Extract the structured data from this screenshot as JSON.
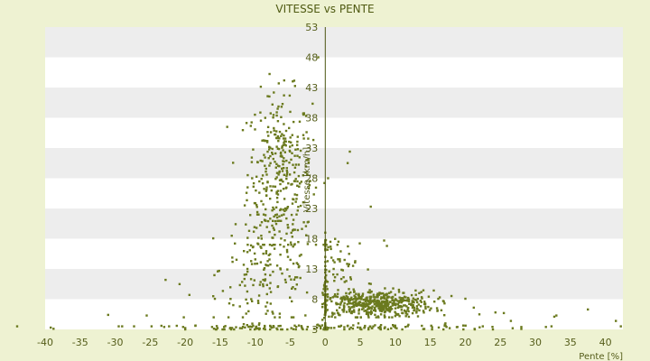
{
  "chart_data": {
    "type": "scatter",
    "title": "VITESSE vs PENTE",
    "xlabel": "Pente [%]",
    "ylabel": "Vitesse [km/h]",
    "xlim": [
      -40,
      42.5
    ],
    "ylim": [
      3,
      53
    ],
    "x_ticks": [
      "-40",
      "-35",
      "-30",
      "-25",
      "-20",
      "-15",
      "-10",
      "-5",
      "0",
      "5",
      "10",
      "15",
      "20",
      "25",
      "30",
      "35",
      "40"
    ],
    "y_ticks": [
      "3",
      "8",
      "13",
      "18",
      "23",
      "28",
      "33",
      "38",
      "43",
      "48",
      "53"
    ],
    "colors": {
      "background": "#eef2d2",
      "plot_band_light": "#ffffff",
      "plot_band_dark": "#ededed",
      "marker": "#6b7a1e",
      "text": "#555d1a"
    },
    "grid": true,
    "legend": "none",
    "clusters": [
      {
        "x_mean": -6.5,
        "x_sd": 2.3,
        "y_mean": 29,
        "y_sd": 6.5,
        "count": 330,
        "x_range": [
          -14,
          0
        ],
        "y_range": [
          17,
          47
        ]
      },
      {
        "x_mean": -8,
        "x_sd": 3.5,
        "y_mean": 13,
        "y_sd": 5,
        "count": 170,
        "x_range": [
          -16,
          0
        ],
        "y_range": [
          5,
          22
        ]
      },
      {
        "x_mean": 7,
        "x_sd": 4.2,
        "y_mean": 7.2,
        "y_sd": 1.1,
        "count": 520,
        "x_range": [
          0,
          20
        ],
        "y_range": [
          5,
          10.5
        ]
      },
      {
        "x_mean": 2,
        "x_sd": 2.5,
        "y_mean": 13,
        "y_sd": 3,
        "count": 70,
        "x_range": [
          0,
          10
        ],
        "y_range": [
          8,
          19
        ]
      },
      {
        "x_mean": -8,
        "x_sd": 6,
        "y_mean": 3.3,
        "y_sd": 0.3,
        "count": 90,
        "x_range": [
          -20,
          0
        ],
        "y_range": [
          3,
          4
        ]
      },
      {
        "x_mean": 8,
        "x_sd": 8,
        "y_mean": 3.3,
        "y_sd": 0.3,
        "count": 90,
        "x_range": [
          0,
          28
        ],
        "y_range": [
          3,
          4
        ]
      },
      {
        "x_mean": 0,
        "x_sd": 0.2,
        "y_mean": 7,
        "y_sd": 4,
        "count": 40,
        "x_range": [
          -0.4,
          0.4
        ],
        "y_range": [
          3,
          17
        ]
      }
    ],
    "outliers": [
      [
        -44,
        3.5
      ],
      [
        -39.2,
        3.3
      ],
      [
        -38.8,
        3.1
      ],
      [
        -31,
        5.4
      ],
      [
        -29.5,
        3.5
      ],
      [
        -29,
        3.5
      ],
      [
        -27.3,
        3.5
      ],
      [
        -25.5,
        5.3
      ],
      [
        -24.8,
        3.5
      ],
      [
        -23.4,
        3.6
      ],
      [
        -23,
        3.4
      ],
      [
        -22.3,
        3.5
      ],
      [
        -21.2,
        3.6
      ],
      [
        -20.3,
        3.4
      ],
      [
        -20.2,
        5
      ],
      [
        -22.8,
        11.2
      ],
      [
        -20.8,
        10.5
      ],
      [
        -19.4,
        8.7
      ],
      [
        -13.7,
        7.3
      ],
      [
        -12.2,
        6.8
      ],
      [
        -1,
        48
      ],
      [
        0.4,
        28
      ],
      [
        3.5,
        32.4
      ],
      [
        3.2,
        30.5
      ],
      [
        3.4,
        15.5
      ],
      [
        6.5,
        23.3
      ],
      [
        8.8,
        16.8
      ],
      [
        8.4,
        17.7
      ],
      [
        21.2,
        6.6
      ],
      [
        22,
        5.5
      ],
      [
        22.5,
        3.5
      ],
      [
        24.3,
        5.8
      ],
      [
        25.5,
        5.7
      ],
      [
        26.5,
        4.4
      ],
      [
        28,
        3.4
      ],
      [
        31.5,
        3.4
      ],
      [
        32.3,
        3.5
      ],
      [
        32.7,
        5.1
      ],
      [
        33,
        5.3
      ],
      [
        37.5,
        6.3
      ],
      [
        41.5,
        4.4
      ],
      [
        42.2,
        3.5
      ]
    ]
  }
}
